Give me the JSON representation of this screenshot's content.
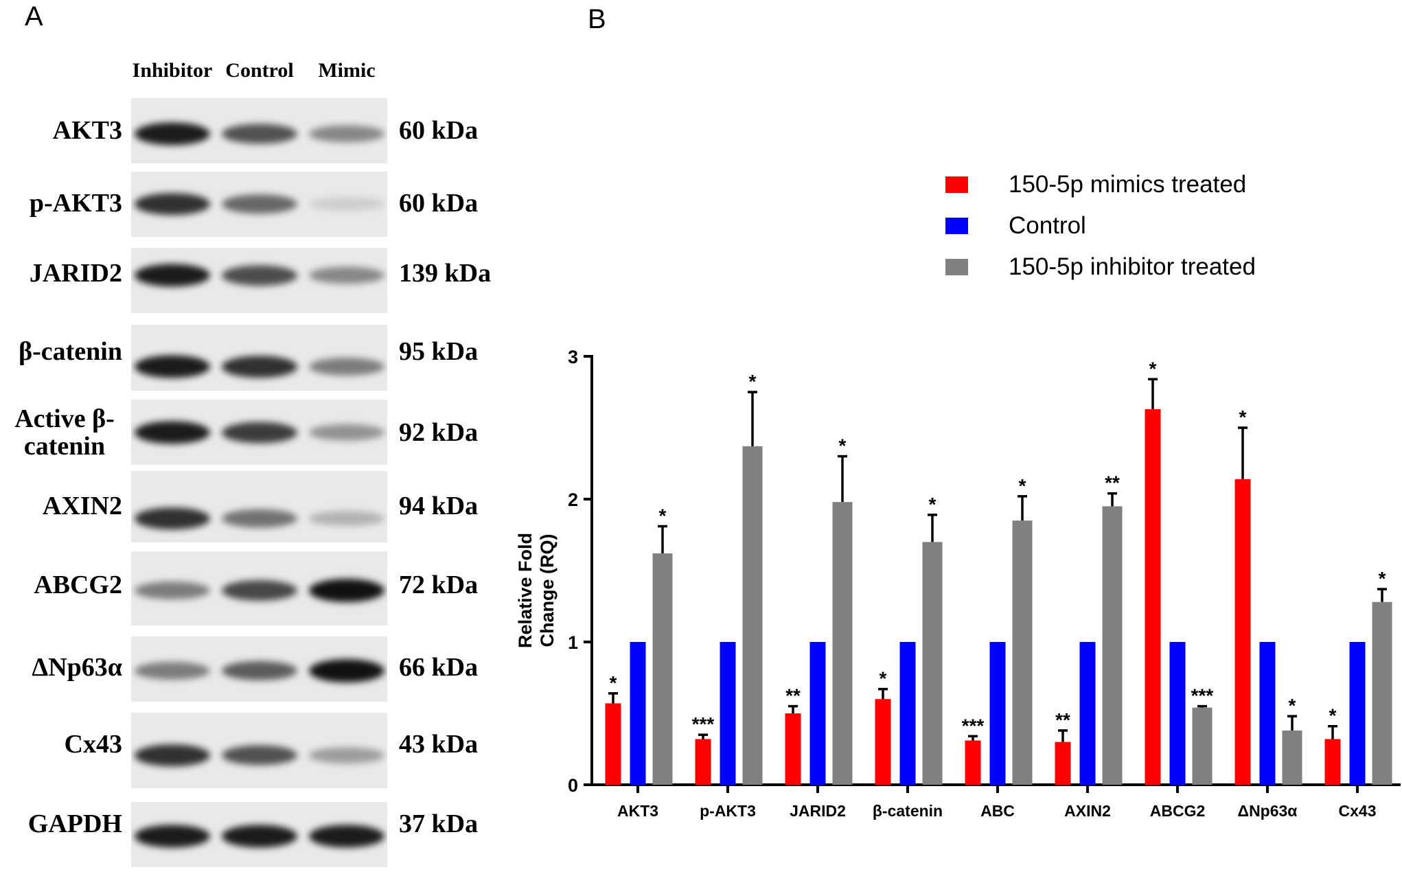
{
  "panel_a": {
    "label": "A",
    "lanes": [
      "Inhibitor",
      "Control",
      "Mimic"
    ],
    "rows": [
      {
        "name": "AKT3",
        "kda": "60 kDa",
        "intensity": [
          0.95,
          0.7,
          0.45
        ]
      },
      {
        "name": "p-AKT3",
        "kda": "60 kDa",
        "intensity": [
          0.85,
          0.6,
          0.12
        ]
      },
      {
        "name": "JARID2",
        "kda": "139 kDa",
        "intensity": [
          0.95,
          0.72,
          0.45
        ]
      },
      {
        "name": "β-catenin",
        "kda": "95 kDa",
        "intensity": [
          0.95,
          0.85,
          0.5
        ]
      },
      {
        "name": "Active β-catenin",
        "kda": "92 kDa",
        "intensity": [
          0.95,
          0.8,
          0.4
        ]
      },
      {
        "name": "AXIN2",
        "kda": "94 kDa",
        "intensity": [
          0.85,
          0.55,
          0.25
        ]
      },
      {
        "name": "ABCG2",
        "kda": "72 kDa",
        "intensity": [
          0.5,
          0.75,
          1.0
        ]
      },
      {
        "name": "ΔNp63α",
        "kda": "66 kDa",
        "intensity": [
          0.5,
          0.65,
          1.0
        ]
      },
      {
        "name": "Cx43",
        "kda": "43 kDa",
        "intensity": [
          0.85,
          0.7,
          0.35
        ]
      },
      {
        "name": "GAPDH",
        "kda": "37 kDa",
        "intensity": [
          0.95,
          0.95,
          0.95
        ]
      }
    ]
  },
  "chart_data": {
    "panel_label": "B",
    "type": "bar",
    "ylabel": "Relative Fold Change (RQ)",
    "xlabel": "",
    "ylim": [
      0,
      3
    ],
    "yticks": [
      0,
      1,
      2,
      3
    ],
    "grid": false,
    "legend_placement": "top-right",
    "categories": [
      "AKT3",
      "p-AKT3",
      "JARID2",
      "β-catenin",
      "ABC",
      "AXIN2",
      "ABCG2",
      "ΔNp63α",
      "Cx43"
    ],
    "series": [
      {
        "name": "150-5p mimics treated",
        "color": "#ff0000",
        "values": [
          0.57,
          0.32,
          0.5,
          0.6,
          0.31,
          0.3,
          2.63,
          2.14,
          0.32
        ],
        "error": [
          0.07,
          0.03,
          0.05,
          0.07,
          0.03,
          0.08,
          0.21,
          0.36,
          0.09
        ],
        "significance": [
          "*",
          "***",
          "**",
          "*",
          "***",
          "**",
          "*",
          "*",
          "*"
        ]
      },
      {
        "name": "Control",
        "color": "#0000ff",
        "values": [
          1,
          1,
          1,
          1,
          1,
          1,
          1,
          1,
          1
        ],
        "error": [
          0,
          0,
          0,
          0,
          0,
          0,
          0,
          0,
          0
        ],
        "significance": [
          "",
          "",
          "",
          "",
          "",
          "",
          "",
          "",
          ""
        ]
      },
      {
        "name": "150-5p inhibitor treated",
        "color": "#808080",
        "values": [
          1.62,
          2.37,
          1.98,
          1.7,
          1.85,
          1.95,
          0.54,
          0.38,
          1.28
        ],
        "error": [
          0.19,
          0.38,
          0.32,
          0.19,
          0.17,
          0.09,
          0.01,
          0.1,
          0.09
        ],
        "significance": [
          "*",
          "*",
          "*",
          "*",
          "*",
          "**",
          "***",
          "*",
          "*"
        ]
      }
    ]
  }
}
